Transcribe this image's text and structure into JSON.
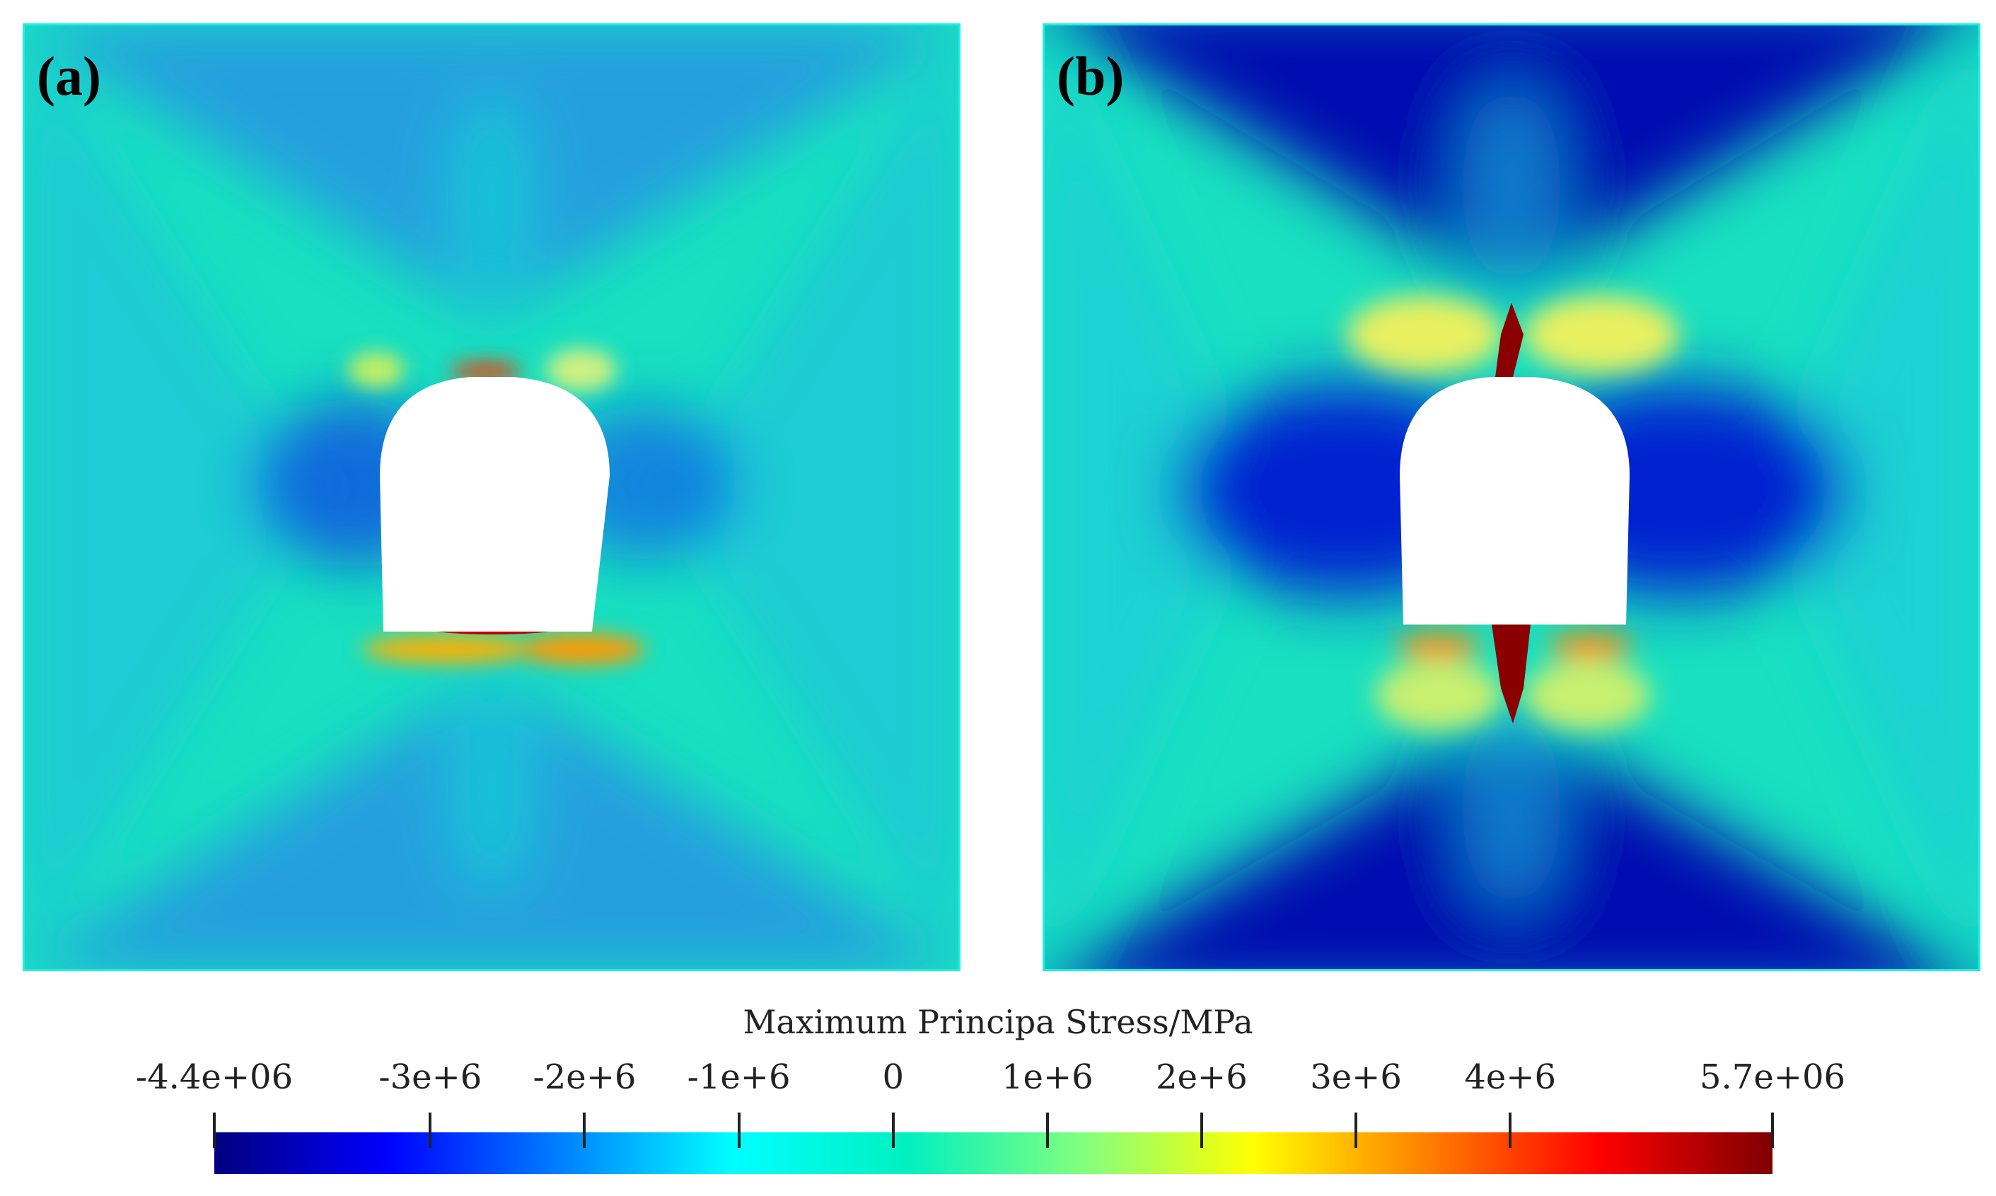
{
  "panels": [
    {
      "label": "(a)"
    },
    {
      "label": "(b)"
    }
  ],
  "colorbar": {
    "title": "Maximum Principa Stress/MPa",
    "min": -4400000,
    "max": 5700000,
    "ticks": [
      {
        "label": "-4.4e+06",
        "value": -4400000
      },
      {
        "label": "-3e+6",
        "value": -3000000
      },
      {
        "label": "-2e+6",
        "value": -2000000
      },
      {
        "label": "-1e+6",
        "value": -1000000
      },
      {
        "label": "0",
        "value": 0
      },
      {
        "label": "1e+6",
        "value": 1000000
      },
      {
        "label": "2e+6",
        "value": 2000000
      },
      {
        "label": "3e+6",
        "value": 3000000
      },
      {
        "label": "4e+6",
        "value": 4000000
      },
      {
        "label": "5.7e+06",
        "value": 5700000
      }
    ],
    "colors": [
      "#00007f",
      "#0000ff",
      "#0080ff",
      "#00ffff",
      "#00f0c0",
      "#80ff80",
      "#ffff00",
      "#ff8000",
      "#ff0000",
      "#7f0000"
    ]
  }
}
